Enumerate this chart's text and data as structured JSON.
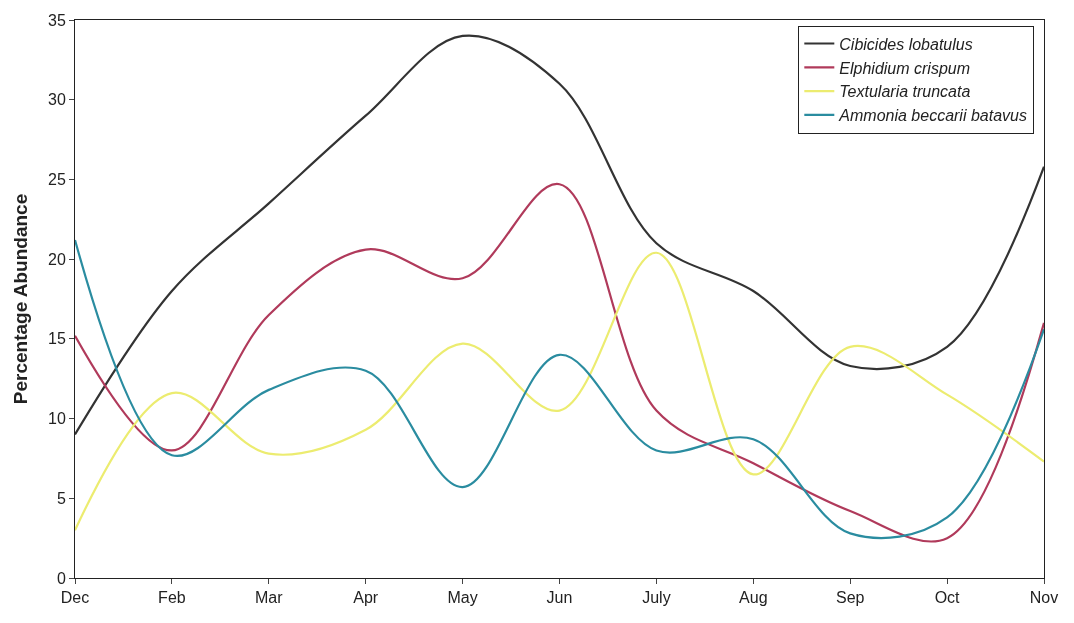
{
  "chart_data": {
    "type": "line",
    "ylabel": "Percentage Abundance",
    "categories": [
      "Dec",
      "Feb",
      "Mar",
      "Apr",
      "May",
      "Jun",
      "July",
      "Aug",
      "Sep",
      "Oct",
      "Nov"
    ],
    "ylim": [
      0,
      35
    ],
    "yticks": [
      0,
      5,
      10,
      15,
      20,
      25,
      30,
      35
    ],
    "legend": "top right",
    "series": [
      {
        "name": "Cibicides lobatulus",
        "color": "#333333",
        "values": [
          9,
          18,
          23.5,
          29,
          34,
          31,
          21,
          18,
          13.3,
          14.5,
          25.8
        ]
      },
      {
        "name": "Elphidium crispum",
        "color": "#b03a5b",
        "values": [
          15.2,
          8,
          16.5,
          20.6,
          18.8,
          24.7,
          10.5,
          7.2,
          4.2,
          2.5,
          16
        ]
      },
      {
        "name": "Textularia truncata",
        "color": "#ecec70",
        "values": [
          3,
          11.6,
          7.8,
          9.3,
          14.7,
          10.5,
          20.4,
          6.5,
          14.5,
          11.5,
          7.3
        ]
      },
      {
        "name": "Ammonia beccarii batavus",
        "color": "#2a8ca0",
        "values": [
          21.2,
          7.7,
          11.8,
          13,
          5.7,
          14,
          8,
          8.7,
          2.8,
          3.8,
          15.6
        ]
      }
    ]
  }
}
